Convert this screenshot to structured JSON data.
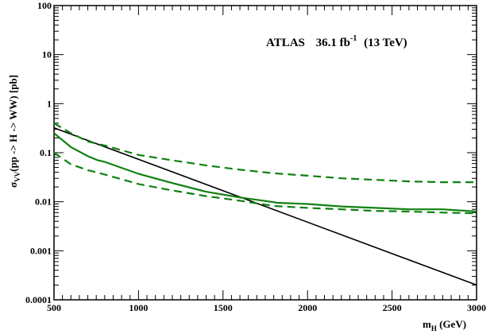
{
  "chart_data": {
    "type": "line",
    "annotation": {
      "experiment": "ATLAS",
      "lumi": "36.1 fb",
      "lumi_sup": "-1",
      "energy": "(13 TeV)"
    },
    "xlabel": {
      "main": "m",
      "sub": "H",
      "unit": " (GeV)"
    },
    "ylabel": {
      "main": "σ",
      "sub": "VV",
      "rest": "(pp -> H -> WW) [pb]"
    },
    "xlim": [
      500,
      3000
    ],
    "ylim": [
      0.0001,
      100
    ],
    "ylog": true,
    "x_ticks": [
      500,
      1000,
      1500,
      2000,
      2500,
      3000
    ],
    "x_tick_labels": [
      "500",
      "1000",
      "1500",
      "2000",
      "2500",
      "3000"
    ],
    "y_ticks": [
      0.0001,
      0.001,
      0.01,
      0.1,
      1,
      10,
      100
    ],
    "y_tick_labels": [
      "0.0001",
      "0.001",
      "0.01",
      "0.1",
      "1",
      "10",
      "100"
    ],
    "colors": {
      "green": "#108010",
      "black": "#000000"
    },
    "series": [
      {
        "color": "#000000",
        "style": "solid",
        "x": [
          500,
          3000
        ],
        "y": [
          0.32,
          0.0002
        ]
      },
      {
        "color": "#108010",
        "style": "solid",
        "x": [
          500,
          600,
          700,
          760,
          800,
          1000,
          1200,
          1400,
          1600,
          1800,
          1820,
          2000,
          2200,
          2400,
          2600,
          2800,
          3000
        ],
        "y": [
          0.25,
          0.13,
          0.085,
          0.07,
          0.065,
          0.037,
          0.024,
          0.016,
          0.0122,
          0.0098,
          0.0095,
          0.009,
          0.008,
          0.0075,
          0.007,
          0.007,
          0.0063
        ]
      },
      {
        "color": "#108010",
        "style": "dashed",
        "x": [
          500,
          600,
          700,
          760,
          800,
          1000,
          1200,
          1400,
          1600,
          1800,
          2000,
          2200,
          2400,
          2600,
          2800,
          3000
        ],
        "y": [
          0.4,
          0.25,
          0.17,
          0.15,
          0.14,
          0.09,
          0.07,
          0.055,
          0.045,
          0.038,
          0.034,
          0.03,
          0.028,
          0.026,
          0.025,
          0.025
        ]
      },
      {
        "color": "#108010",
        "style": "dashed",
        "x": [
          500,
          600,
          700,
          760,
          800,
          1000,
          1200,
          1400,
          1600,
          1800,
          2000,
          2200,
          2400,
          2600,
          2800,
          3000
        ],
        "y": [
          0.1,
          0.058,
          0.044,
          0.039,
          0.036,
          0.023,
          0.017,
          0.013,
          0.0105,
          0.0082,
          0.0075,
          0.007,
          0.0065,
          0.0063,
          0.006,
          0.0058
        ]
      }
    ]
  }
}
